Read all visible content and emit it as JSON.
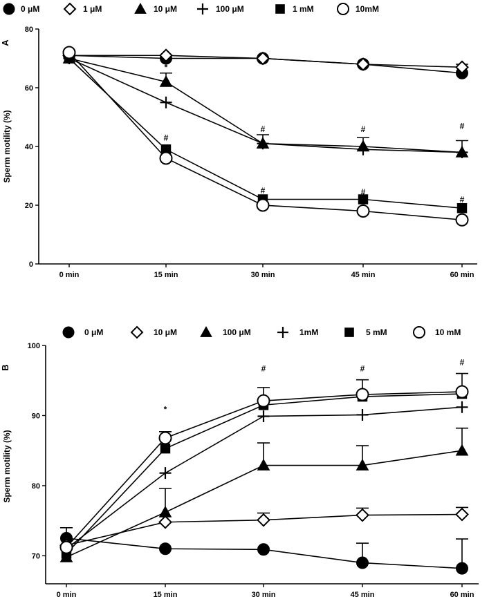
{
  "chart_data": [
    {
      "type": "line",
      "panel": "A",
      "ylabel": "Sperm motility (%)",
      "xlabel": "",
      "categories": [
        "0 min",
        "15 min",
        "30 min",
        "45 min",
        "60 min"
      ],
      "ylim": [
        0,
        80
      ],
      "yticks": [
        "0",
        "20",
        "40",
        "60",
        "80"
      ],
      "legend_position": "top",
      "series": [
        {
          "name": "0 μM",
          "marker": "filled-circle",
          "values": [
            71,
            70,
            70,
            68,
            65
          ],
          "errors": [
            0,
            0,
            0,
            0,
            3
          ]
        },
        {
          "name": "1 μM",
          "marker": "open-diamond",
          "values": [
            71,
            71,
            70,
            68,
            67
          ],
          "errors": [
            0,
            0,
            0,
            0,
            0
          ]
        },
        {
          "name": "10 μM",
          "marker": "filled-triangle",
          "values": [
            70,
            62,
            41,
            40,
            38
          ],
          "errors": [
            0,
            3,
            3,
            3,
            4
          ]
        },
        {
          "name": "100 μM",
          "marker": "plus",
          "values": [
            70,
            55,
            41,
            39,
            38
          ],
          "errors": [
            0,
            0,
            0,
            0,
            0
          ]
        },
        {
          "name": "1 mM",
          "marker": "filled-square",
          "values": [
            70,
            39,
            22,
            22,
            19
          ],
          "errors": [
            0,
            0,
            0,
            0,
            0
          ]
        },
        {
          "name": "10mM",
          "marker": "open-circle",
          "values": [
            72,
            36,
            20,
            18,
            15
          ],
          "errors": [
            0,
            0,
            0,
            0,
            0
          ]
        }
      ],
      "annotations": [
        {
          "text": "*",
          "category": "15 min",
          "y": 66
        },
        {
          "text": "#",
          "category": "15 min",
          "y": 42
        },
        {
          "text": "#",
          "category": "30 min",
          "y": 45
        },
        {
          "text": "#",
          "category": "45 min",
          "y": 45
        },
        {
          "text": "#",
          "category": "60 min",
          "y": 46
        },
        {
          "text": "#",
          "category": "30 min",
          "y": 24
        },
        {
          "text": "#",
          "category": "45 min",
          "y": 23.5
        },
        {
          "text": "#",
          "category": "60 min",
          "y": 21
        }
      ]
    },
    {
      "type": "line",
      "panel": "B",
      "ylabel": "Sperm motility (%)",
      "xlabel": "",
      "categories": [
        "0 min",
        "15 min",
        "30 min",
        "45 min",
        "60 min"
      ],
      "ylim": [
        66,
        100
      ],
      "yticks": [
        "70",
        "80",
        "90",
        "100"
      ],
      "ytick_values": [
        70,
        80,
        90,
        100
      ],
      "legend_position": "top",
      "series": [
        {
          "name": "0 μM",
          "marker": "filled-circle",
          "values": [
            72.5,
            71,
            70.9,
            69,
            68.2
          ],
          "errors": [
            1.5,
            0,
            0,
            2.8,
            4.2
          ]
        },
        {
          "name": "10 μM",
          "marker": "open-diamond",
          "values": [
            71.5,
            74.8,
            75.1,
            75.8,
            75.9
          ],
          "errors": [
            0,
            0,
            1,
            1,
            1
          ]
        },
        {
          "name": "100 μM",
          "marker": "filled-triangle",
          "values": [
            69.8,
            76.2,
            82.9,
            82.9,
            85
          ],
          "errors": [
            0,
            3.4,
            3.2,
            2.8,
            3.2
          ]
        },
        {
          "name": "1mM",
          "marker": "plus",
          "values": [
            71,
            81.8,
            89.9,
            90.1,
            91.2
          ],
          "errors": [
            0,
            0,
            0,
            0,
            0
          ]
        },
        {
          "name": "5 mM",
          "marker": "filled-square",
          "values": [
            70.3,
            85.3,
            91.5,
            92.7,
            93.1
          ],
          "errors": [
            0,
            2.4,
            2.5,
            2.4,
            2.9
          ]
        },
        {
          "name": "10 mM",
          "marker": "open-circle",
          "values": [
            71.2,
            86.8,
            92.1,
            93,
            93.4
          ],
          "errors": [
            0,
            0,
            0,
            0,
            0
          ]
        }
      ],
      "annotations": [
        {
          "text": "*",
          "category": "15 min",
          "y": 90.5
        },
        {
          "text": "#",
          "category": "30 min",
          "y": 96.3
        },
        {
          "text": "#",
          "category": "45 min",
          "y": 96.3
        },
        {
          "text": "#",
          "category": "60 min",
          "y": 97.2
        }
      ]
    }
  ]
}
